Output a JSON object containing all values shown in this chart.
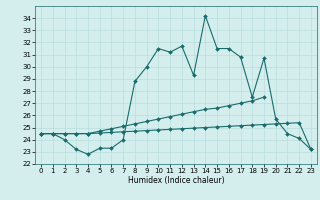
{
  "xlabel": "Humidex (Indice chaleur)",
  "x": [
    0,
    1,
    2,
    3,
    4,
    5,
    6,
    7,
    8,
    9,
    10,
    11,
    12,
    13,
    14,
    15,
    16,
    17,
    18,
    19,
    20,
    21,
    22,
    23
  ],
  "line1": [
    24.5,
    24.5,
    24.0,
    23.2,
    22.8,
    23.3,
    23.3,
    24.0,
    28.8,
    30.0,
    31.5,
    31.2,
    31.7,
    29.3,
    34.2,
    31.5,
    31.5,
    30.8,
    27.5,
    30.7,
    25.7,
    24.5,
    24.1,
    23.2
  ],
  "line2": [
    24.5,
    24.5,
    24.5,
    24.5,
    24.5,
    24.7,
    24.9,
    25.1,
    25.3,
    25.5,
    25.7,
    25.9,
    26.1,
    26.3,
    26.5,
    26.6,
    26.8,
    27.0,
    27.2,
    27.5,
    null,
    null,
    null,
    null
  ],
  "line3": [
    24.5,
    24.5,
    24.5,
    24.5,
    24.5,
    24.55,
    24.6,
    24.65,
    24.7,
    24.75,
    24.8,
    24.85,
    24.9,
    24.95,
    25.0,
    25.05,
    25.1,
    25.15,
    25.2,
    25.25,
    25.3,
    25.35,
    25.4,
    23.2
  ],
  "line_color": "#1a6b6b",
  "bg_color": "#d4eeee",
  "grid_color": "#b8dede",
  "ylim": [
    22,
    35
  ],
  "xlim": [
    -0.5,
    23.5
  ],
  "yticks": [
    22,
    23,
    24,
    25,
    26,
    27,
    28,
    29,
    30,
    31,
    32,
    33,
    34
  ],
  "xticks": [
    0,
    1,
    2,
    3,
    4,
    5,
    6,
    7,
    8,
    9,
    10,
    11,
    12,
    13,
    14,
    15,
    16,
    17,
    18,
    19,
    20,
    21,
    22,
    23
  ],
  "markersize": 2.0,
  "linewidth": 0.8,
  "tick_fontsize": 5.0,
  "xlabel_fontsize": 5.5
}
